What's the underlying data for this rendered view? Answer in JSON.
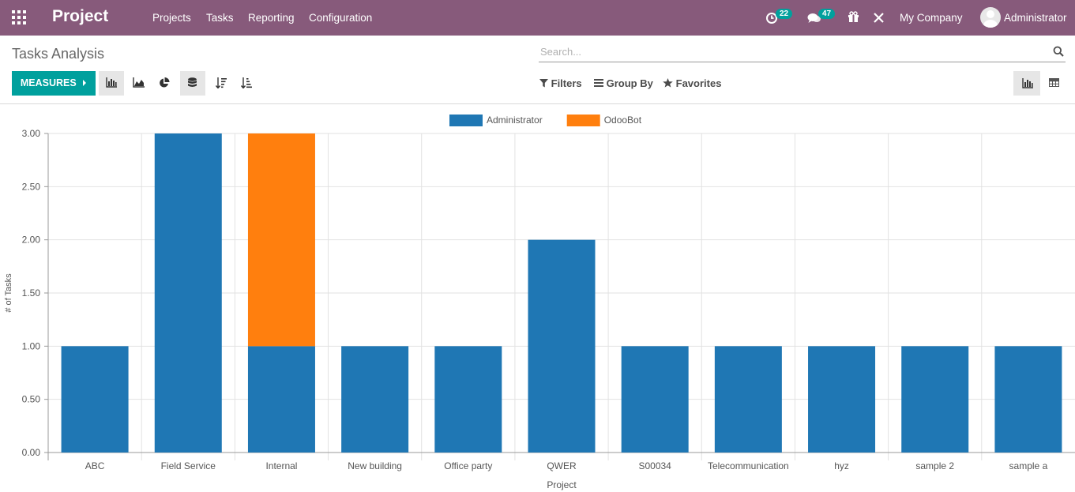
{
  "navbar": {
    "brand": "Project",
    "menu": [
      "Projects",
      "Tasks",
      "Reporting",
      "Configuration"
    ],
    "activity_count": "22",
    "messages_count": "47",
    "company": "My Company",
    "user": "Administrator"
  },
  "control": {
    "title": "Tasks Analysis",
    "search_placeholder": "Search...",
    "measures_label": "MEASURES",
    "filters_label": "Filters",
    "groupby_label": "Group By",
    "favorites_label": "Favorites"
  },
  "colors": {
    "navbar": "#875a7b",
    "accent": "#00a09d",
    "administrator": "#1f77b4",
    "odoobot": "#ff7f0e"
  },
  "chart_data": {
    "type": "bar",
    "stacked": true,
    "categories": [
      "ABC",
      "Field Service",
      "Internal",
      "New building",
      "Office party",
      "QWER",
      "S00034",
      "Telecommunication",
      "hyz",
      "sample 2",
      "sample a"
    ],
    "series": [
      {
        "name": "Administrator",
        "values": [
          1,
          3,
          1,
          1,
          1,
          2,
          1,
          1,
          1,
          1,
          1
        ]
      },
      {
        "name": "OdooBot",
        "values": [
          0,
          0,
          2,
          0,
          0,
          0,
          0,
          0,
          0,
          0,
          0
        ]
      }
    ],
    "xlabel": "Project",
    "ylabel": "# of Tasks",
    "ylim": [
      0,
      3
    ],
    "yticks": [
      "0.00",
      "0.50",
      "1.00",
      "1.50",
      "2.00",
      "2.50",
      "3.00"
    ],
    "grid": true,
    "legend": "top-center"
  }
}
